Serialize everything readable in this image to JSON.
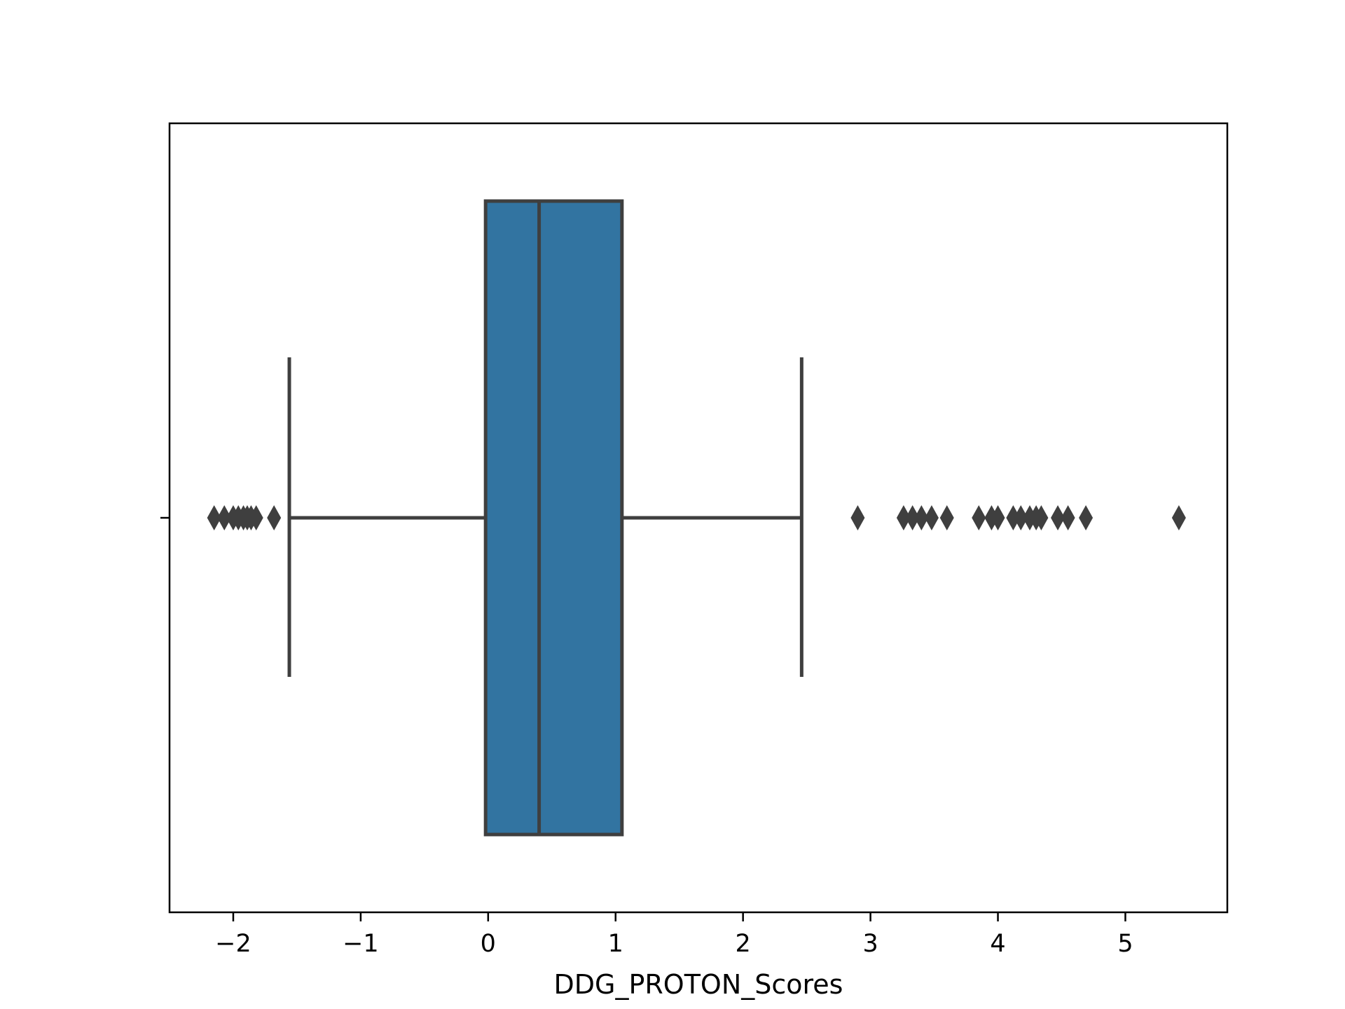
{
  "chart_data": {
    "type": "box",
    "orientation": "horizontal",
    "title": "",
    "xlabel": "DDG_PROTON_Scores",
    "ylabel": "",
    "xlim": [
      -2.5,
      5.8
    ],
    "xticks": [
      -2,
      -1,
      0,
      1,
      2,
      3,
      4,
      5
    ],
    "xtick_labels": [
      "−2",
      "−1",
      "0",
      "1",
      "2",
      "3",
      "4",
      "5"
    ],
    "grid": false,
    "box": {
      "whisker_low": -1.56,
      "q1": -0.02,
      "median": 0.4,
      "q3": 1.05,
      "whisker_high": 2.46
    },
    "outliers": [
      -2.15,
      -2.07,
      -2.0,
      -1.96,
      -1.92,
      -1.89,
      -1.86,
      -1.82,
      -1.68,
      2.9,
      3.26,
      3.33,
      3.4,
      3.48,
      3.6,
      3.85,
      3.95,
      4.0,
      4.12,
      4.18,
      4.25,
      4.3,
      4.34,
      4.47,
      4.55,
      4.69,
      5.42
    ],
    "colors": {
      "box_fill": "#3274a1",
      "lines": "#3f3f3f",
      "axes": "#000000"
    }
  }
}
